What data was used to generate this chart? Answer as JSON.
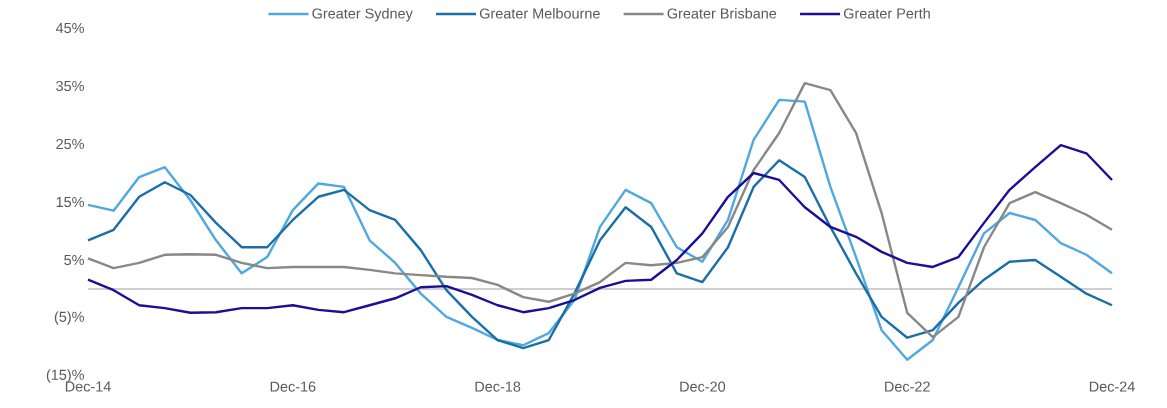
{
  "chart_data": {
    "type": "line",
    "legend": "top",
    "x": [
      "2014-12",
      "2015-03",
      "2015-06",
      "2015-09",
      "2015-12",
      "2016-03",
      "2016-06",
      "2016-09",
      "2016-12",
      "2017-03",
      "2017-06",
      "2017-09",
      "2017-12",
      "2018-03",
      "2018-06",
      "2018-09",
      "2018-12",
      "2019-03",
      "2019-06",
      "2019-09",
      "2019-12",
      "2020-03",
      "2020-06",
      "2020-09",
      "2020-12",
      "2021-03",
      "2021-06",
      "2021-09",
      "2021-12",
      "2022-03",
      "2022-06",
      "2022-09",
      "2022-12",
      "2023-03",
      "2023-06",
      "2023-09",
      "2023-12",
      "2024-03",
      "2024-06",
      "2024-09",
      "2024-12"
    ],
    "xlim": [
      "2014-12",
      "2024-12"
    ],
    "xticks": [
      {
        "value": "2014-12",
        "label": "Dec-14"
      },
      {
        "value": "2016-12",
        "label": "Dec-16"
      },
      {
        "value": "2018-12",
        "label": "Dec-18"
      },
      {
        "value": "2020-12",
        "label": "Dec-20"
      },
      {
        "value": "2022-12",
        "label": "Dec-22"
      },
      {
        "value": "2024-12",
        "label": "Dec-24"
      }
    ],
    "ylim": [
      -15,
      45
    ],
    "yticks": [
      {
        "value": -15,
        "label": "(15)%"
      },
      {
        "value": -5,
        "label": "(5)%"
      },
      {
        "value": 5,
        "label": "5%"
      },
      {
        "value": 15,
        "label": "15%"
      },
      {
        "value": 25,
        "label": "25%"
      },
      {
        "value": 35,
        "label": "35%"
      },
      {
        "value": 45,
        "label": "45%"
      }
    ],
    "ref_lines": [
      {
        "axis": "y",
        "value": 0,
        "color": "#bfbfbf"
      }
    ],
    "series": [
      {
        "name": "Greater Sydney",
        "color": "#4fa8e0",
        "values": [
          14.5,
          13.5,
          19.3,
          21.0,
          15.3,
          8.4,
          2.7,
          5.5,
          13.6,
          18.2,
          17.6,
          8.4,
          4.5,
          -0.8,
          -4.8,
          -6.7,
          -8.8,
          -9.7,
          -7.6,
          -1.9,
          10.7,
          17.1,
          14.8,
          7.2,
          4.7,
          11.9,
          25.7,
          32.6,
          32.3,
          17.6,
          5.5,
          -7.1,
          -12.2,
          -8.8,
          0.3,
          9.6,
          13.1,
          11.9,
          7.9,
          5.9,
          2.7
        ]
      },
      {
        "name": "Greater Melbourne",
        "color": "#1a6fa8",
        "values": [
          8.4,
          10.2,
          15.9,
          18.4,
          16.2,
          11.4,
          7.2,
          7.2,
          11.9,
          15.9,
          17.1,
          13.6,
          11.9,
          6.7,
          -0.2,
          -4.8,
          -8.8,
          -10.2,
          -8.8,
          -0.8,
          8.4,
          14.1,
          10.7,
          2.7,
          1.2,
          7.2,
          17.6,
          22.2,
          19.3,
          10.7,
          2.7,
          -4.8,
          -8.4,
          -7.1,
          -2.4,
          1.6,
          4.7,
          5.0,
          2.1,
          -0.8,
          -2.8
        ]
      },
      {
        "name": "Greater Brisbane",
        "color": "#888888",
        "values": [
          5.3,
          3.6,
          4.5,
          5.9,
          6.0,
          5.9,
          4.5,
          3.6,
          3.8,
          3.8,
          3.8,
          3.3,
          2.7,
          2.4,
          2.1,
          1.9,
          0.7,
          -1.4,
          -2.2,
          -0.8,
          1.2,
          4.5,
          4.1,
          4.5,
          5.5,
          10.7,
          20.5,
          26.9,
          35.5,
          34.3,
          26.9,
          13.1,
          -4.1,
          -8.3,
          -4.8,
          7.2,
          14.8,
          16.7,
          14.8,
          12.8,
          10.2
        ]
      },
      {
        "name": "Greater Perth",
        "color": "#1a0f96",
        "values": [
          1.6,
          -0.2,
          -2.8,
          -3.3,
          -4.1,
          -4.0,
          -3.3,
          -3.3,
          -2.8,
          -3.6,
          -4.0,
          -2.8,
          -1.6,
          0.3,
          0.5,
          -1.0,
          -2.8,
          -4.0,
          -3.3,
          -1.9,
          0.2,
          1.4,
          1.6,
          5.0,
          9.6,
          15.9,
          20.0,
          18.8,
          14.1,
          10.7,
          9.0,
          6.4,
          4.5,
          3.8,
          5.5,
          11.4,
          17.1,
          21.0,
          24.8,
          23.4,
          18.8
        ]
      }
    ]
  }
}
